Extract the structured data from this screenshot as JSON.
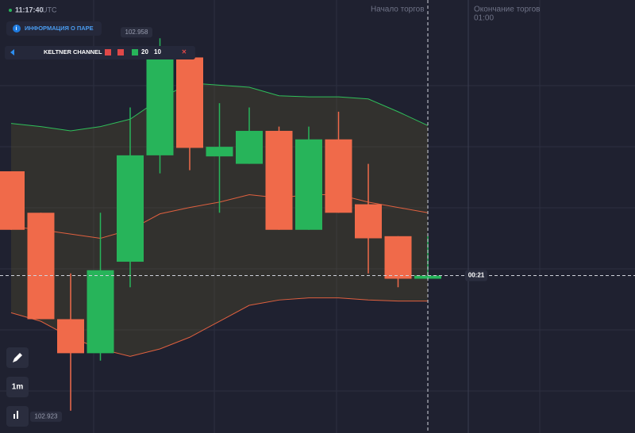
{
  "header": {
    "time": "11:17:40",
    "timezone": "UTC",
    "info_button": "ИНФОРМАЦИЯ О ПАРЕ"
  },
  "indicator": {
    "name": "KELTNER CHANNEL",
    "period": 20,
    "multiplier": 10
  },
  "markers": {
    "start_label": "Начало торгов",
    "end_label": "Окончание торгов",
    "end_time": "01:00",
    "countdown": "00:21"
  },
  "toolbar": {
    "timeframe": "1m"
  },
  "chart_data": {
    "type": "candlestick",
    "ylim": [
      102.9209,
      102.9616
    ],
    "up_color": "#27b45a",
    "down_color": "#f06a4a",
    "high_label": 102.958,
    "low_label": 102.923,
    "current_price": 102.9357,
    "open": [
      102.9455,
      102.9416,
      102.9316,
      102.9284,
      102.937,
      102.947,
      102.9562,
      102.9469,
      102.9462,
      102.9493,
      102.94,
      102.9485,
      102.9424,
      102.9394,
      102.9354
    ],
    "high": [
      102.9455,
      102.9416,
      102.9359,
      102.9416,
      102.9515,
      102.958,
      102.9571,
      102.9519,
      102.9515,
      102.9497,
      102.9497,
      102.9511,
      102.9462,
      102.9394,
      102.9394
    ],
    "low": [
      102.94,
      102.9316,
      102.923,
      102.9277,
      102.9346,
      102.9453,
      102.9456,
      102.9416,
      102.9462,
      102.94,
      102.94,
      102.9416,
      102.9359,
      102.9346,
      102.9354
    ],
    "close": [
      102.94,
      102.9316,
      102.9284,
      102.9362,
      102.947,
      102.9562,
      102.9477,
      102.9478,
      102.9493,
      102.94,
      102.9485,
      102.9416,
      102.9392,
      102.9354,
      102.9357
    ],
    "series": [
      {
        "name": "upper",
        "color": "#2fbf5a",
        "values": [
          102.95,
          102.9497,
          102.9493,
          102.9497,
          102.9504,
          102.9523,
          102.9538,
          102.9536,
          102.9534,
          102.9526,
          102.9525,
          102.9525,
          102.9523,
          102.9511,
          102.9498
        ]
      },
      {
        "name": "middle",
        "color": "#e0603f",
        "values": [
          102.9403,
          102.94,
          102.9396,
          102.9392,
          102.94,
          102.9415,
          102.9421,
          102.9426,
          102.9433,
          102.943,
          102.9433,
          102.9433,
          102.9426,
          102.9421,
          102.9416
        ]
      },
      {
        "name": "lower",
        "color": "#e0603f",
        "values": [
          102.9322,
          102.9314,
          102.9299,
          102.9288,
          102.9281,
          102.9288,
          102.9299,
          102.9314,
          102.9329,
          102.9334,
          102.9336,
          102.9336,
          102.9334,
          102.9333,
          102.9333
        ]
      }
    ]
  }
}
